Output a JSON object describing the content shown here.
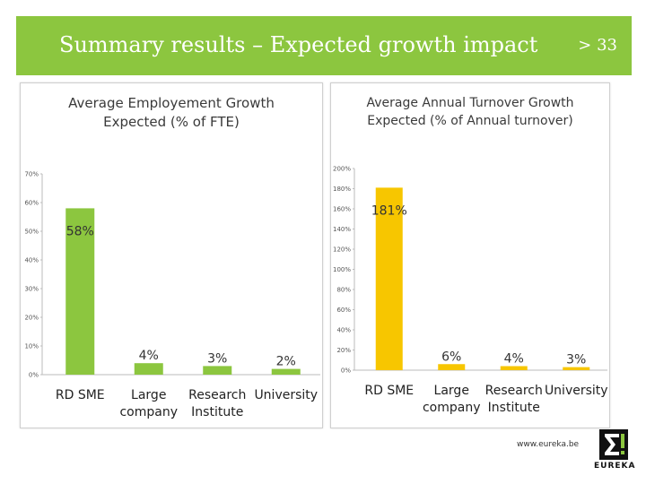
{
  "header": {
    "title": "Summary results – Expected growth impact",
    "page_number": "> 33"
  },
  "footer": {
    "url": "www.eureka.be",
    "logo_text": "EUREKA"
  },
  "colors": {
    "header_bg": "#8cc63f",
    "left_bar": "#8cc63f",
    "right_bar": "#f7c600"
  },
  "chart_data": [
    {
      "type": "bar",
      "title_lines": [
        "Average Employement Growth",
        "Expected (% of FTE)"
      ],
      "categories": [
        [
          "RD SME"
        ],
        [
          "Large",
          "company"
        ],
        [
          "Research",
          "Institute"
        ],
        [
          "University"
        ]
      ],
      "values": [
        58,
        4,
        3,
        2
      ],
      "data_labels": [
        "58%",
        "4%",
        "3%",
        "2%"
      ],
      "yticks": [
        "0%",
        "10%",
        "20%",
        "30%",
        "40%",
        "50%",
        "60%",
        "70%"
      ],
      "ylim": [
        0,
        70
      ],
      "grid": false
    },
    {
      "type": "bar",
      "title_lines": [
        "Average Annual Turnover Growth",
        "Expected (% of Annual turnover)"
      ],
      "categories": [
        [
          "RD SME"
        ],
        [
          "Large",
          "company"
        ],
        [
          "Research",
          "Institute"
        ],
        [
          "University"
        ]
      ],
      "values": [
        181,
        6,
        4,
        3
      ],
      "data_labels": [
        "181%",
        "6%",
        "4%",
        "3%"
      ],
      "yticks": [
        "0%",
        "20%",
        "40%",
        "60%",
        "80%",
        "100%",
        "120%",
        "140%",
        "160%",
        "180%",
        "200%"
      ],
      "ylim": [
        0,
        200
      ],
      "grid": false
    }
  ]
}
